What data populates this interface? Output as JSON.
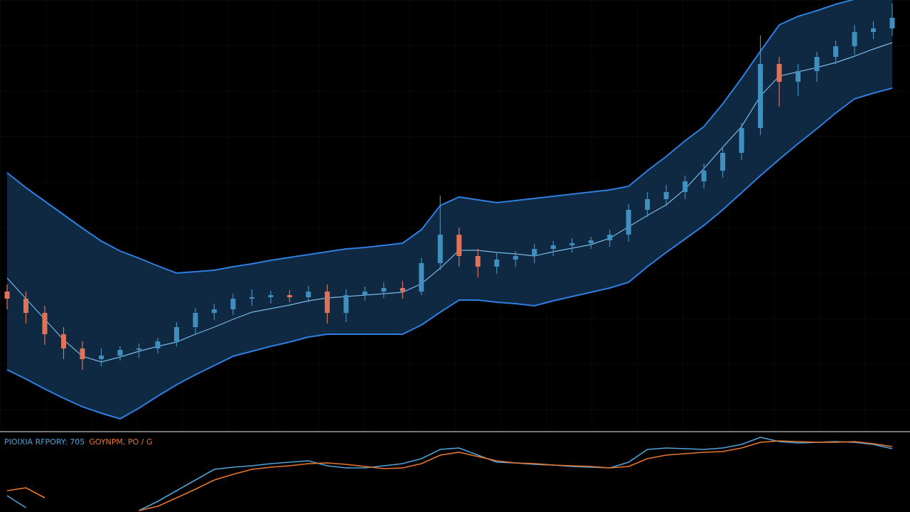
{
  "chart_data": [
    {
      "type": "candlestick",
      "up_color": "#3f8fbf",
      "down_color": "#e07258",
      "ylim": [
        0,
        605
      ],
      "open": [
        195,
        185,
        165,
        135,
        115,
        100,
        105,
        113,
        115,
        125,
        145,
        165,
        170,
        185,
        187,
        190,
        187,
        195,
        165,
        190,
        195,
        200,
        195,
        235,
        275,
        245,
        230,
        240,
        245,
        255,
        260,
        263,
        267,
        275,
        310,
        325,
        335,
        350,
        365,
        390,
        425,
        515,
        490,
        505,
        525,
        540,
        560,
        565
      ],
      "high": [
        205,
        195,
        175,
        145,
        125,
        115,
        118,
        122,
        130,
        152,
        172,
        178,
        192,
        198,
        196,
        197,
        203,
        205,
        198,
        202,
        208,
        210,
        242,
        330,
        285,
        255,
        250,
        252,
        262,
        266,
        270,
        272,
        282,
        318,
        335,
        345,
        358,
        375,
        398,
        432,
        555,
        525,
        515,
        532,
        548,
        570,
        575,
        600
      ],
      "low": [
        170,
        150,
        120,
        100,
        85,
        90,
        98,
        102,
        108,
        118,
        135,
        155,
        162,
        175,
        178,
        180,
        180,
        150,
        152,
        182,
        186,
        185,
        190,
        225,
        230,
        215,
        220,
        230,
        235,
        245,
        250,
        255,
        258,
        265,
        300,
        315,
        325,
        340,
        355,
        380,
        415,
        455,
        470,
        490,
        515,
        528,
        550,
        555
      ],
      "close": [
        185,
        165,
        135,
        115,
        100,
        105,
        113,
        115,
        125,
        145,
        165,
        170,
        185,
        187,
        190,
        187,
        195,
        165,
        190,
        195,
        200,
        195,
        235,
        275,
        245,
        230,
        240,
        245,
        255,
        260,
        263,
        267,
        275,
        310,
        325,
        335,
        350,
        365,
        390,
        425,
        515,
        490,
        505,
        525,
        540,
        560,
        565,
        580
      ],
      "bands": {
        "color": "#2e7fe0",
        "middle_color": "#7ab8e6",
        "fill": "#12304f",
        "upper": [
          362,
          341,
          322,
          303,
          284,
          266,
          252,
          242,
          231,
          221,
          223,
          225,
          230,
          234,
          239,
          243,
          247,
          251,
          255,
          257,
          260,
          263,
          282,
          316,
          328,
          324,
          320,
          323,
          326,
          329,
          332,
          335,
          338,
          343,
          365,
          385,
          407,
          427,
          459,
          495,
          533,
          570,
          582,
          590,
          599,
          606,
          614,
          621
        ],
        "middle": [
          214,
          185,
          156,
          127,
          104,
          96,
          103,
          111,
          118,
          124,
          135,
          145,
          156,
          166,
          171,
          176,
          182,
          186,
          188,
          190,
          192,
          194,
          206,
          228,
          253,
          253,
          250,
          248,
          245,
          251,
          256,
          261,
          270,
          286,
          302,
          317,
          339,
          368,
          398,
          427,
          470,
          498,
          504,
          510,
          517,
          526,
          536,
          545
        ],
        "lower": [
          85,
          72,
          58,
          45,
          33,
          24,
          16,
          31,
          48,
          64,
          78,
          91,
          104,
          111,
          118,
          124,
          131,
          135,
          135,
          135,
          135,
          135,
          148,
          166,
          183,
          183,
          180,
          178,
          175,
          182,
          188,
          194,
          200,
          208,
          230,
          250,
          269,
          288,
          310,
          334,
          358,
          381,
          403,
          424,
          446,
          466,
          474,
          481
        ]
      }
    },
    {
      "type": "line",
      "ylim": [
        0,
        108
      ],
      "series": [
        {
          "name": "PIOIXIA RFPORY: 705",
          "color": "#4fa3d6",
          "values": [
            23,
            6,
            null,
            null,
            null,
            null,
            null,
            2,
            15,
            30,
            45,
            60,
            63,
            65,
            68,
            70,
            72,
            65,
            62,
            62,
            65,
            68,
            75,
            88,
            90,
            80,
            70,
            69,
            67,
            66,
            64,
            63,
            62,
            70,
            88,
            90,
            89,
            88,
            90,
            95,
            105,
            99,
            97,
            98,
            99,
            98,
            95,
            89
          ]
        },
        {
          "name": "GOYNPM, PO / G",
          "color": "#e8772e",
          "values": [
            30,
            34,
            20,
            null,
            null,
            null,
            null,
            2,
            8,
            20,
            32,
            45,
            53,
            60,
            63,
            65,
            68,
            69,
            67,
            64,
            61,
            62,
            68,
            80,
            84,
            78,
            72,
            69,
            68,
            66,
            65,
            64,
            62,
            64,
            75,
            80,
            82,
            84,
            85,
            90,
            98,
            100,
            99,
            98,
            98,
            99,
            96,
            92
          ]
        }
      ]
    }
  ]
}
